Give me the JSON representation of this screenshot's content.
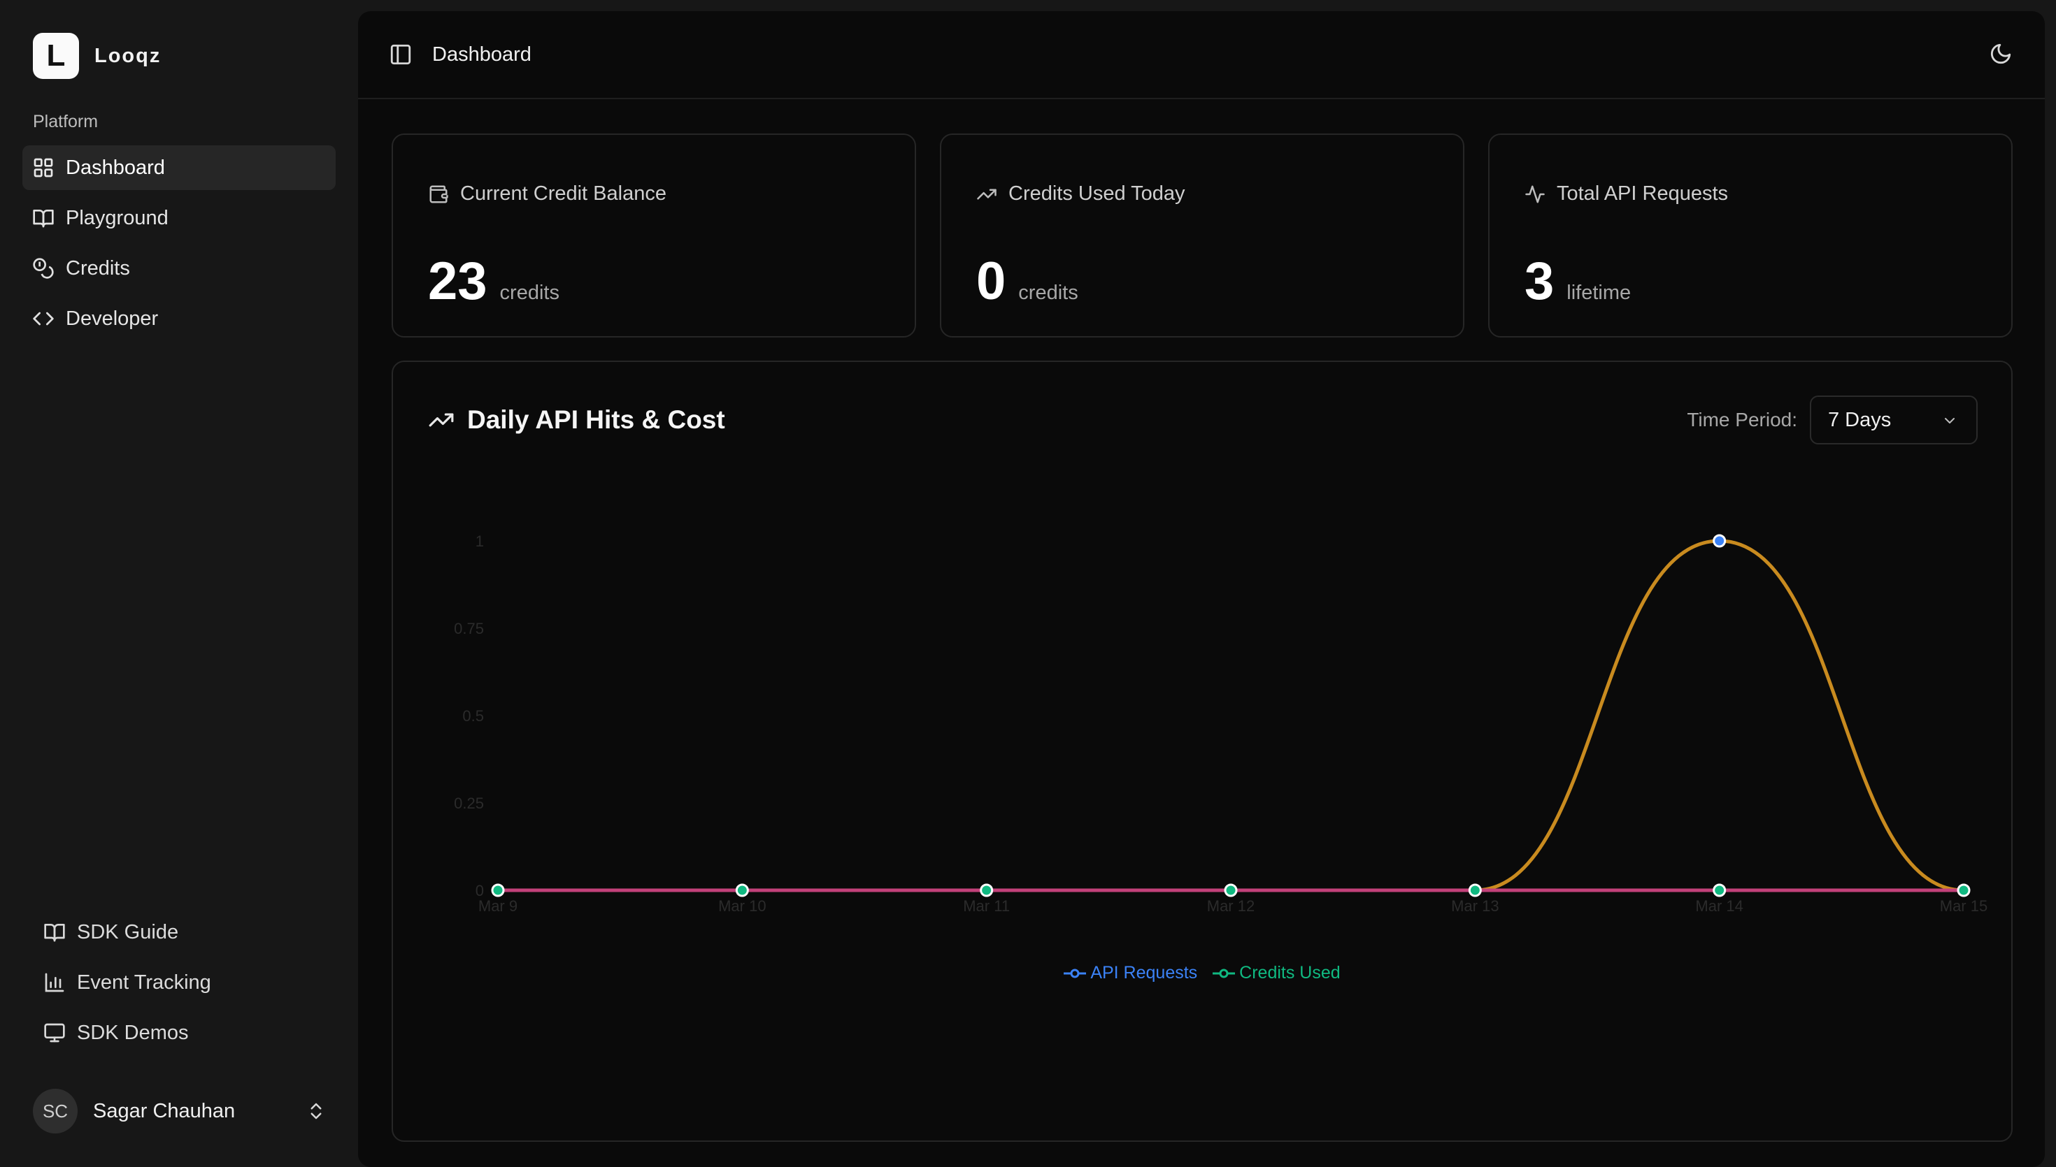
{
  "brand": {
    "logo_letter": "L",
    "name": "Looqz"
  },
  "sidebar": {
    "section_label": "Platform",
    "items": [
      {
        "label": "Dashboard",
        "icon": "grid-icon",
        "active": true
      },
      {
        "label": "Playground",
        "icon": "book-open-icon",
        "active": false
      },
      {
        "label": "Credits",
        "icon": "coins-icon",
        "active": false
      },
      {
        "label": "Developer",
        "icon": "code-icon",
        "active": false
      }
    ],
    "footer_items": [
      {
        "label": "SDK Guide",
        "icon": "book-open-icon"
      },
      {
        "label": "Event Tracking",
        "icon": "bar-chart-icon"
      },
      {
        "label": "SDK Demos",
        "icon": "monitor-icon"
      }
    ],
    "user": {
      "initials": "SC",
      "name": "Sagar Chauhan"
    }
  },
  "header": {
    "title": "Dashboard"
  },
  "stats": [
    {
      "label": "Current Credit Balance",
      "value": "23",
      "unit": "credits",
      "icon": "wallet-icon"
    },
    {
      "label": "Credits Used Today",
      "value": "0",
      "unit": "credits",
      "icon": "trending-up-icon"
    },
    {
      "label": "Total API Requests",
      "value": "3",
      "unit": "lifetime",
      "icon": "activity-icon"
    }
  ],
  "chart": {
    "title": "Daily API Hits & Cost",
    "period_label": "Time Period:",
    "period_value": "7 Days"
  },
  "colors": {
    "api_requests": "#3b82f6",
    "credits_used": "#10b981",
    "line_orange": "#c98b1f",
    "line_pink": "#c2417a"
  },
  "chart_data": {
    "type": "line",
    "categories": [
      "Mar 9",
      "Mar 10",
      "Mar 11",
      "Mar 12",
      "Mar 13",
      "Mar 14",
      "Mar 15"
    ],
    "series": [
      {
        "name": "API Requests",
        "values": [
          0,
          0,
          0,
          0,
          0,
          1,
          0
        ]
      },
      {
        "name": "Credits Used",
        "values": [
          0,
          0,
          0,
          0,
          0,
          0,
          0
        ]
      }
    ],
    "y_ticks": [
      "0",
      "0.25",
      "0.5",
      "0.75",
      "1"
    ],
    "ylim": [
      0,
      1
    ],
    "legend": "bottom-center"
  }
}
